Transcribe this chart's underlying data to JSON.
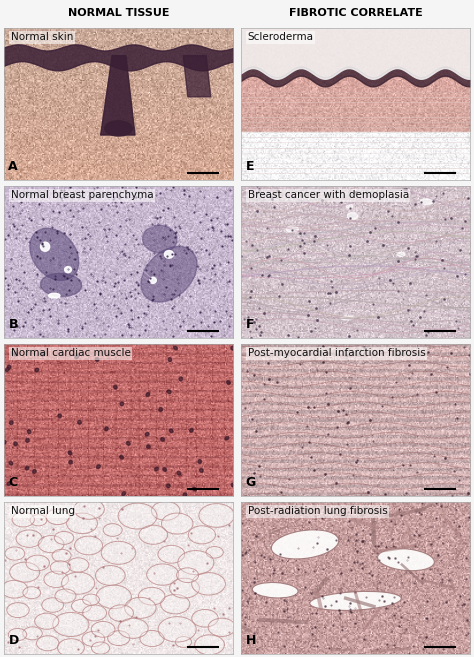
{
  "title_left": "NORMAL TISSUE",
  "title_right": "FIBROTIC CORRELATE",
  "panels": [
    {
      "label": "A",
      "title": "Normal skin",
      "row": 0,
      "col": 0,
      "tissue_type": "skin_normal"
    },
    {
      "label": "E",
      "title": "Scleroderma",
      "row": 0,
      "col": 1,
      "tissue_type": "skin_fibrotic"
    },
    {
      "label": "B",
      "title": "Normal breast parenchyma",
      "row": 1,
      "col": 0,
      "tissue_type": "breast_normal"
    },
    {
      "label": "F",
      "title": "Breast cancer with demoplasia",
      "row": 1,
      "col": 1,
      "tissue_type": "breast_fibrotic"
    },
    {
      "label": "C",
      "title": "Normal cardiac muscle",
      "row": 2,
      "col": 0,
      "tissue_type": "cardiac_normal"
    },
    {
      "label": "G",
      "title": "Post-myocardial infarction fibrosis",
      "row": 2,
      "col": 1,
      "tissue_type": "cardiac_fibrotic"
    },
    {
      "label": "D",
      "title": "Normal lung",
      "row": 3,
      "col": 0,
      "tissue_type": "lung_normal"
    },
    {
      "label": "H",
      "title": "Post-radiation lung fibrosis",
      "row": 3,
      "col": 1,
      "tissue_type": "lung_fibrotic"
    }
  ],
  "figure_bg": "#f5f5f5",
  "label_fontsize": 9,
  "title_fontsize": 7.5,
  "header_fontsize": 8,
  "panel_label_color": "#000000",
  "header_color": "#000000",
  "border_color": "#aaaaaa",
  "scale_bar_color": "#000000",
  "skin_normal_bg": "#d4a090",
  "skin_fibrotic_bg": "#d8b0a8",
  "breast_normal_bg": "#c8b8d0",
  "breast_fibrotic_bg": "#d8c8d0",
  "cardiac_normal_bg": "#c87878",
  "cardiac_fibrotic_bg": "#d4b0b0",
  "lung_normal_bg": "#f0eaea",
  "lung_fibrotic_bg": "#c8a0a0"
}
